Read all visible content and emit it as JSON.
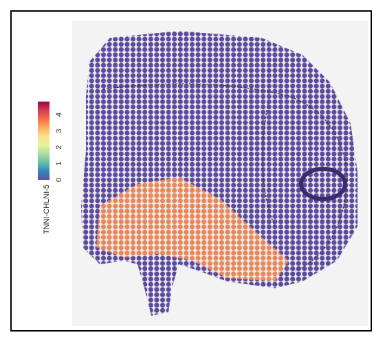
{
  "chart_data": {
    "type": "colorbar",
    "label": "TNNI-CHLNI-5",
    "ylim": [
      0,
      4.8
    ],
    "yticks": [
      0,
      1,
      2,
      3,
      4
    ],
    "colors": [
      "#5e4fa2",
      "#3288bd",
      "#66c2a5",
      "#abdda4",
      "#e6f598",
      "#fee08b",
      "#fdae61",
      "#f46d43",
      "#d53e4f",
      "#9e0142"
    ]
  }
}
